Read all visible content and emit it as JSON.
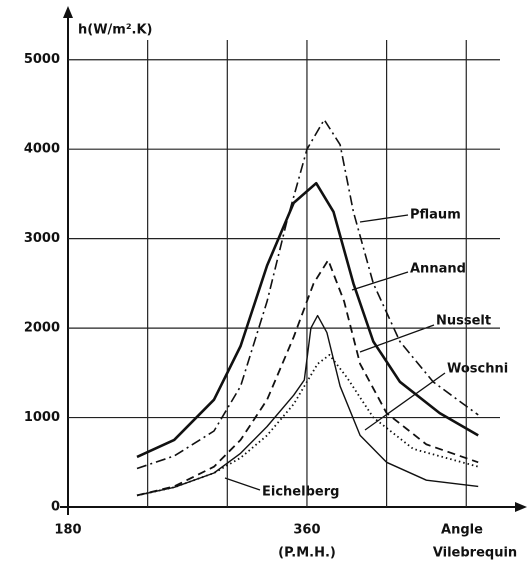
{
  "chart_data": {
    "type": "line",
    "y_label": "h(W/m².K)",
    "x_label_line1": "Angle",
    "x_label_line2": "Vilebrequin",
    "x_note": "(P.M.H.)",
    "xlim": [
      180,
      525
    ],
    "ylim": [
      0,
      5500
    ],
    "xticks": [
      180,
      360
    ],
    "xgrid": [
      240,
      300,
      360,
      420,
      480
    ],
    "yticks": [
      0,
      1000,
      2000,
      3000,
      4000,
      5000
    ],
    "grid": true,
    "series": [
      {
        "name": "Pflaum",
        "color": "#111",
        "style": "dashdot",
        "x": [
          232,
          260,
          290,
          310,
          330,
          345,
          360,
          373,
          385,
          395,
          410,
          430,
          455,
          489
        ],
        "values": [
          430,
          570,
          850,
          1350,
          2300,
          3200,
          4000,
          4330,
          4050,
          3300,
          2500,
          1850,
          1400,
          1030
        ]
      },
      {
        "name": "Annand",
        "color": "#111",
        "style": "thick",
        "x": [
          232,
          260,
          290,
          310,
          330,
          350,
          367,
          380,
          395,
          410,
          430,
          460,
          489
        ],
        "values": [
          560,
          750,
          1200,
          1800,
          2700,
          3400,
          3620,
          3300,
          2500,
          1850,
          1400,
          1050,
          800
        ]
      },
      {
        "name": "Nusselt",
        "color": "#111",
        "style": "dashed",
        "x": [
          232,
          260,
          290,
          310,
          330,
          350,
          365,
          376,
          388,
          400,
          420,
          450,
          489
        ],
        "values": [
          130,
          230,
          450,
          750,
          1200,
          1900,
          2500,
          2760,
          2300,
          1600,
          1050,
          700,
          500
        ]
      },
      {
        "name": "Woschni",
        "color": "#111",
        "style": "dotted",
        "x": [
          232,
          260,
          290,
          310,
          330,
          350,
          368,
          377,
          390,
          410,
          440,
          489
        ],
        "values": [
          130,
          220,
          380,
          550,
          800,
          1150,
          1600,
          1700,
          1450,
          1000,
          650,
          450
        ]
      },
      {
        "name": "Eichelberg",
        "color": "#111",
        "style": "thin",
        "x": [
          232,
          260,
          290,
          310,
          330,
          350,
          358,
          363,
          368,
          375,
          385,
          400,
          420,
          450,
          489
        ],
        "values": [
          130,
          220,
          380,
          600,
          900,
          1250,
          1420,
          2000,
          2140,
          1950,
          1350,
          800,
          500,
          300,
          230
        ]
      }
    ]
  }
}
